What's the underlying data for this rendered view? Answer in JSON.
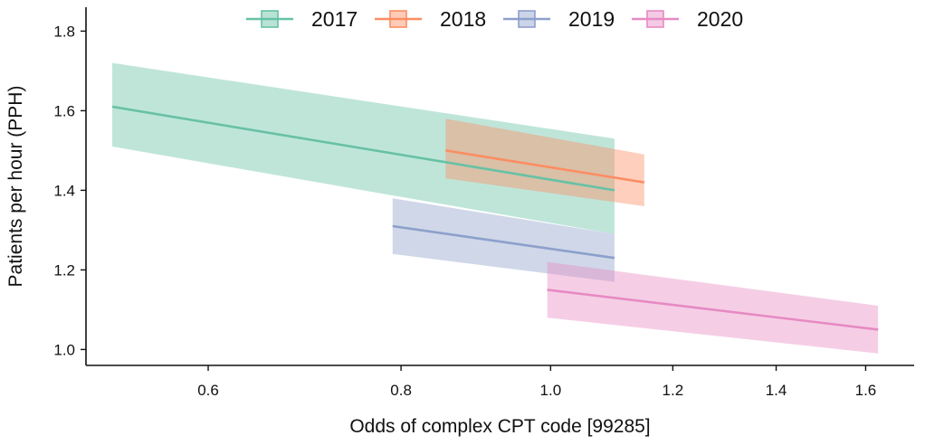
{
  "chart_data": {
    "type": "line",
    "xlabel": "Odds of complex CPT code [99285]",
    "ylabel": "Patients per hour (PPH)",
    "x_scale": "log",
    "xlim": [
      0.5,
      1.72
    ],
    "ylim": [
      0.96,
      1.86
    ],
    "xticks": [
      0.6,
      0.8,
      1.0,
      1.2,
      1.4,
      1.6
    ],
    "xtick_labels": [
      "0.6",
      "0.8",
      "1.0",
      "1.2",
      "1.4",
      "1.6"
    ],
    "yticks": [
      1.0,
      1.2,
      1.4,
      1.6,
      1.8
    ],
    "ytick_labels": [
      "1.0",
      "1.2",
      "1.4",
      "1.6",
      "1.8"
    ],
    "grid": false,
    "legend_position": "top-center",
    "series": [
      {
        "name": "2017",
        "color": "#66c2a5",
        "x": [
          0.52,
          1.1
        ],
        "y": [
          1.61,
          1.4
        ],
        "ci_lower": [
          1.51,
          1.29
        ],
        "ci_upper": [
          1.72,
          1.53
        ]
      },
      {
        "name": "2018",
        "color": "#fc8d62",
        "x": [
          0.855,
          1.15
        ],
        "y": [
          1.5,
          1.42
        ],
        "ci_lower": [
          1.43,
          1.36
        ],
        "ci_upper": [
          1.58,
          1.49
        ]
      },
      {
        "name": "2019",
        "color": "#8da0cb",
        "x": [
          0.79,
          1.1
        ],
        "y": [
          1.31,
          1.23
        ],
        "ci_lower": [
          1.24,
          1.17
        ],
        "ci_upper": [
          1.38,
          1.29
        ]
      },
      {
        "name": "2020",
        "color": "#e78ac3",
        "x": [
          0.995,
          1.63
        ],
        "y": [
          1.15,
          1.05
        ],
        "ci_lower": [
          1.08,
          0.99
        ],
        "ci_upper": [
          1.22,
          1.11
        ]
      }
    ]
  }
}
